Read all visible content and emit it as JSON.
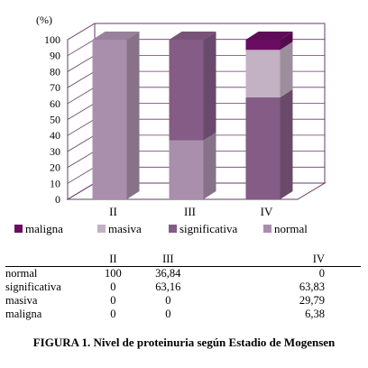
{
  "chart_data": {
    "type": "bar",
    "stacked": true,
    "three_d": true,
    "ylabel": "(%)",
    "ylim": [
      0,
      100
    ],
    "yticks": [
      0,
      10,
      20,
      30,
      40,
      50,
      60,
      70,
      80,
      90,
      100
    ],
    "categories": [
      "II",
      "III",
      "IV"
    ],
    "series": [
      {
        "name": "normal",
        "values": [
          100,
          36.84,
          0
        ],
        "color": "#a98fab"
      },
      {
        "name": "significativa",
        "values": [
          0,
          63.16,
          63.83
        ],
        "color": "#845c85"
      },
      {
        "name": "masiva",
        "values": [
          0,
          0,
          29.79
        ],
        "color": "#c3b1c4"
      },
      {
        "name": "maligna",
        "values": [
          0,
          0,
          6.38
        ],
        "color": "#6a0d62"
      }
    ],
    "legend_position": "bottom",
    "legend_order": [
      "maligna",
      "masiva",
      "significativa",
      "normal"
    ]
  },
  "table": {
    "headers": [
      "",
      "II",
      "III",
      "IV"
    ],
    "rows": [
      [
        "normal",
        "100",
        "36,84",
        "0"
      ],
      [
        "significativa",
        "0",
        "63,16",
        "63,83"
      ],
      [
        "masiva",
        "0",
        "0",
        "29,79"
      ],
      [
        "maligna",
        "0",
        "0",
        "6,38"
      ]
    ]
  },
  "caption": "FIGURA 1. Nivel de proteinuria según Estadio de Mogensen"
}
